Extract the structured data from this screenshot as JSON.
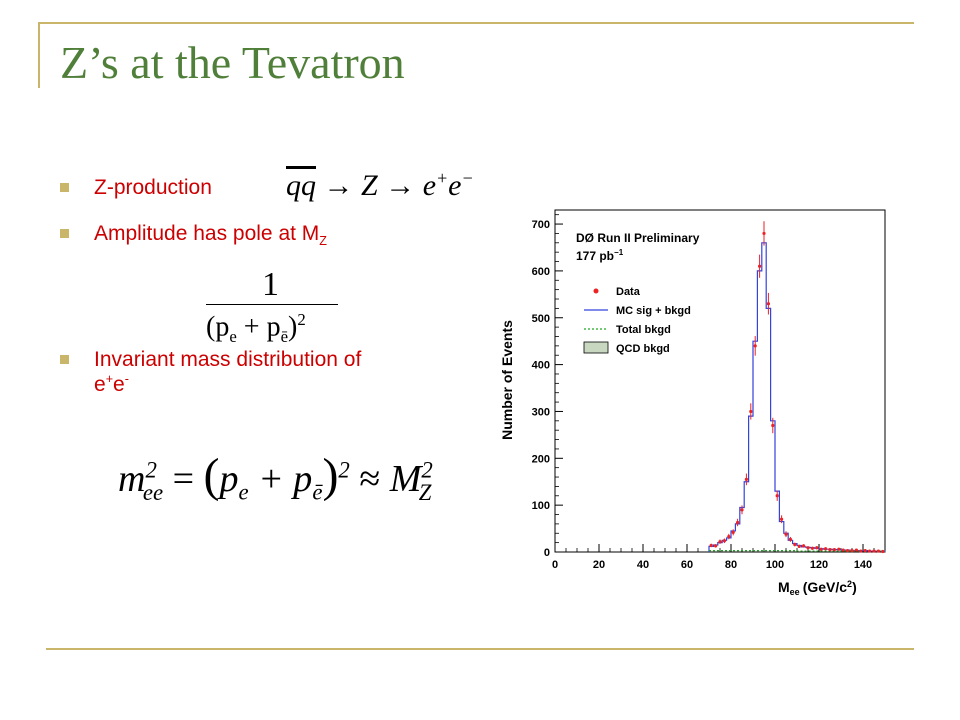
{
  "slide": {
    "title": "Z’s at the Tevatron",
    "bullets": [
      {
        "text": "Z-production"
      },
      {
        "text": "Amplitude has pole at M",
        "sub": "Z"
      },
      {
        "text": "Invariant mass distribution of",
        "line2": "e",
        "sup1": "+",
        "mid": "e",
        "sup2": "-"
      }
    ],
    "equations": {
      "production": {
        "lhs": "qq",
        "arrow": "→",
        "z": "Z",
        "e1": "e",
        "sup1": "+",
        "e2": "e",
        "sup2": "−"
      },
      "propagator": {
        "numerator": "1",
        "denominator": "(p",
        "sub1": "e",
        "plus": " + p",
        "sub2": "ē",
        "close": ")",
        "exp": "2"
      },
      "mass": {
        "m": "m",
        "sup": "2",
        "sub": "ee",
        "eq": " = ",
        "open": "(",
        "pe": "p",
        "sube": "e",
        "plus": " + p",
        "subeb": "ē",
        "close": ")",
        "exp": "2",
        "approx": " ≈ ",
        "M": "M",
        "Msup": "2",
        "Msub": "Z"
      }
    }
  },
  "chart_data": {
    "type": "histogram",
    "xlabel": "M",
    "xlabel_sub": "ee",
    "xlabel_units": "(GeV/c",
    "xlabel_units_sup": "2",
    "xlabel_units_close": ")",
    "ylabel": "Number of Events",
    "xlim": [
      0,
      150
    ],
    "ylim": [
      0,
      730
    ],
    "xticks": [
      0,
      20,
      40,
      60,
      80,
      100,
      120,
      140
    ],
    "yticks": [
      0,
      100,
      200,
      300,
      400,
      500,
      600,
      700
    ],
    "annotation_line1": "DØ Run II Preliminary",
    "annotation_line2": "177 pb",
    "annotation_line2_sup": "−1",
    "legend": [
      "Data",
      "MC sig + bkgd",
      "Total bkgd",
      "QCD bkgd"
    ],
    "bin_width": 2,
    "bin_start": 70,
    "mc_values": [
      12,
      15,
      20,
      25,
      30,
      45,
      60,
      95,
      150,
      290,
      450,
      600,
      660,
      520,
      280,
      130,
      65,
      40,
      25,
      18,
      14,
      11,
      10,
      9,
      8,
      7,
      6,
      6,
      5,
      5,
      4,
      4,
      3,
      3,
      3,
      3,
      2,
      2,
      2,
      2
    ],
    "data_values": [
      14,
      13,
      22,
      24,
      33,
      42,
      63,
      90,
      155,
      300,
      440,
      610,
      680,
      530,
      270,
      120,
      70,
      38,
      27,
      16,
      12,
      13,
      9,
      8,
      9,
      6,
      7,
      5,
      5,
      6,
      4,
      3,
      3,
      4,
      2,
      3,
      2,
      2,
      2,
      1
    ],
    "bkg_values": [
      3,
      3,
      3,
      3,
      3,
      3,
      3,
      3,
      3,
      3,
      3,
      3,
      3,
      3,
      3,
      3,
      3,
      3,
      3,
      3,
      2,
      2,
      2,
      2,
      2,
      2,
      2,
      2,
      2,
      2,
      2,
      2,
      2,
      2,
      2,
      2,
      2,
      2,
      2,
      2
    ],
    "colors": {
      "data": "#ee2222",
      "mc": "#3344dd",
      "total_bkg": "#22aa22",
      "qcd_fill": "#c8d8c0"
    }
  }
}
